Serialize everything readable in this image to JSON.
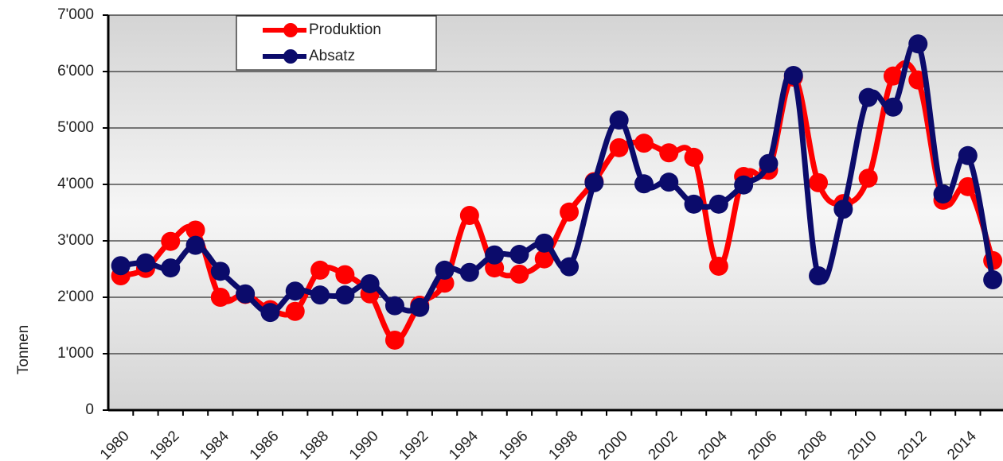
{
  "chart_data": {
    "type": "line",
    "y_label": "Tonnen",
    "categories": [
      "1980",
      null,
      "1982",
      null,
      "1984",
      null,
      "1986",
      null,
      "1988",
      null,
      "1990",
      null,
      "1992",
      null,
      "1994",
      null,
      "1996",
      null,
      "1998",
      null,
      "2000",
      null,
      "2002",
      null,
      "2004",
      null,
      "2006",
      null,
      "2008",
      null,
      "2010",
      null,
      "2012",
      null,
      "2014",
      null
    ],
    "series": [
      {
        "name": "Produktion",
        "color": "#ff0000",
        "values": [
          2380,
          2510,
          2990,
          3190,
          2000,
          2050,
          1780,
          1750,
          2480,
          2400,
          2060,
          1240,
          1860,
          2250,
          3450,
          2520,
          2410,
          2680,
          3510,
          4050,
          4650,
          4730,
          4560,
          4480,
          2550,
          4140,
          4250,
          5900,
          4030,
          3660,
          4110,
          5920,
          5850,
          3720,
          3960,
          2650
        ]
      },
      {
        "name": "Absatz",
        "color": "#0b0b6b",
        "values": [
          2560,
          2610,
          2520,
          2920,
          2460,
          2060,
          1730,
          2110,
          2040,
          2040,
          2240,
          1850,
          1820,
          2480,
          2440,
          2750,
          2760,
          2960,
          2540,
          4030,
          5140,
          4010,
          4040,
          3650,
          3650,
          3990,
          4370,
          5930,
          2380,
          3560,
          5540,
          5370,
          6490,
          3830,
          4510,
          2310
        ]
      }
    ],
    "ylim": [
      0,
      7000
    ],
    "yticks": [
      0,
      {
        "value": 1000,
        "label": "1'000"
      },
      {
        "value": 2000,
        "label": "2'000"
      },
      {
        "value": 3000,
        "label": "3'000"
      },
      {
        "value": 4000,
        "label": "4'000"
      },
      {
        "value": 5000,
        "label": "5'000"
      },
      {
        "value": 6000,
        "label": "6'000"
      },
      {
        "value": 7000,
        "label": "7'000"
      }
    ],
    "grid": true,
    "legend": "top-left"
  }
}
